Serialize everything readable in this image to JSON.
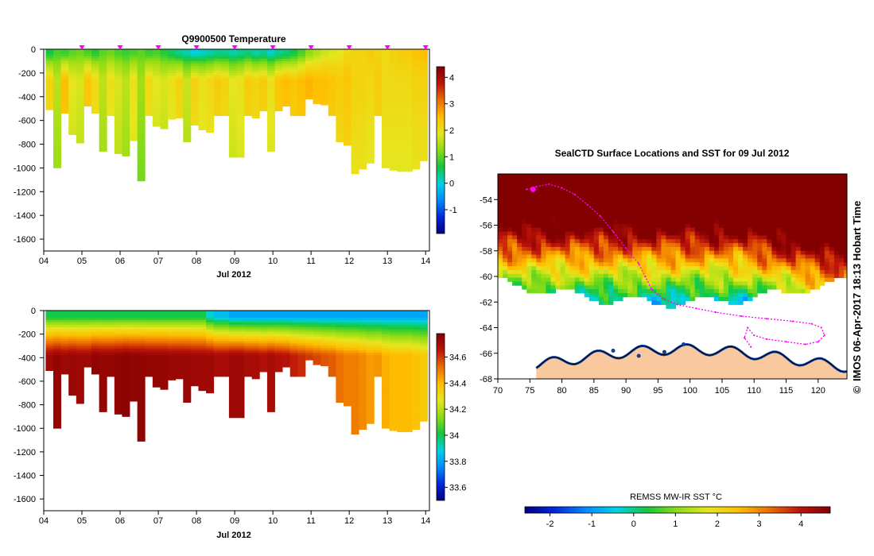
{
  "chart_data": [
    {
      "type": "heatmap",
      "title": "Q9900500  Temperature",
      "xlabel": "Jul 2012",
      "ylabel": "",
      "x_ticks": [
        "04",
        "05",
        "06",
        "07",
        "08",
        "09",
        "10",
        "11",
        "12",
        "13",
        "14"
      ],
      "xlim": [
        4.0,
        14.1
      ],
      "ylim": [
        -1700,
        0
      ],
      "y_ticks": [
        0,
        -200,
        -400,
        -600,
        -800,
        -1000,
        -1200,
        -1400,
        -1600
      ],
      "colorbar": {
        "min": -1.9,
        "max": 4.4,
        "ticks": [
          4,
          3,
          2,
          1,
          0,
          -1
        ]
      },
      "profile_times": [
        4.15,
        4.35,
        4.55,
        4.75,
        4.95,
        5.15,
        5.35,
        5.55,
        5.75,
        5.95,
        6.15,
        6.35,
        6.55,
        6.75,
        6.95,
        7.15,
        7.35,
        7.55,
        7.75,
        7.95,
        8.15,
        8.35,
        8.55,
        8.75,
        8.95,
        9.15,
        9.35,
        9.55,
        9.75,
        9.95,
        10.15,
        10.35,
        10.55,
        10.75,
        10.95,
        11.15,
        11.35,
        11.55,
        11.75,
        11.95,
        12.15,
        12.35,
        12.55,
        12.75,
        12.95,
        13.15,
        13.35,
        13.55,
        13.75,
        13.95
      ],
      "max_depths": [
        510,
        1000,
        540,
        720,
        790,
        480,
        540,
        860,
        560,
        880,
        900,
        770,
        1110,
        560,
        650,
        670,
        590,
        580,
        780,
        640,
        680,
        700,
        560,
        560,
        910,
        910,
        560,
        580,
        520,
        860,
        520,
        480,
        560,
        560,
        420,
        460,
        470,
        560,
        780,
        810,
        1050,
        1010,
        960,
        560,
        1000,
        1020,
        1030,
        1030,
        1010,
        940
      ],
      "surface_temps": [
        0.6,
        0.9,
        0.8,
        1.0,
        1.1,
        0.9,
        0.7,
        1.0,
        1.1,
        0.9,
        0.8,
        0.9,
        1.0,
        0.8,
        0.9,
        0.7,
        0.5,
        0.3,
        0.2,
        0.0,
        0.1,
        0.2,
        0.3,
        0.3,
        0.2,
        0.3,
        0.4,
        0.2,
        0.3,
        0.1,
        0.3,
        0.4,
        0.6,
        0.9,
        1.3,
        1.5,
        1.7,
        1.8,
        1.9,
        2.1,
        2.2,
        2.2,
        2.3,
        2.2,
        2.1,
        2.2,
        2.3,
        2.3,
        2.4,
        2.5
      ],
      "deep_temps": [
        2.2,
        1.6,
        2.5,
        1.9,
        1.8,
        2.4,
        2.1,
        1.6,
        2.0,
        1.8,
        1.6,
        2.0,
        1.4,
        2.1,
        1.9,
        1.8,
        2.0,
        2.2,
        1.7,
        2.2,
        2.0,
        2.1,
        2.3,
        2.2,
        1.9,
        2.0,
        2.3,
        2.2,
        2.3,
        2.0,
        2.4,
        2.5,
        2.4,
        2.5,
        2.6,
        2.5,
        2.5,
        2.4,
        2.3,
        2.4,
        2.2,
        2.2,
        2.1,
        2.3,
        2.1,
        2.1,
        2.1,
        2.1,
        2.2,
        2.2
      ],
      "surface_markers": [
        5.0,
        6.0,
        7.0,
        8.0,
        9.0,
        10.0,
        11.0,
        12.0,
        13.0,
        14.0
      ]
    },
    {
      "type": "heatmap",
      "title": "",
      "xlabel": "Jul 2012",
      "ylabel": "",
      "x_ticks": [
        "04",
        "05",
        "06",
        "07",
        "08",
        "09",
        "10",
        "11",
        "12",
        "13",
        "14"
      ],
      "xlim": [
        4.0,
        14.1
      ],
      "ylim": [
        -1700,
        0
      ],
      "y_ticks": [
        0,
        -200,
        -400,
        -600,
        -800,
        -1000,
        -1200,
        -1400,
        -1600
      ],
      "colorbar": {
        "min": 33.5,
        "max": 34.78,
        "ticks": [
          "34.6",
          "34.4",
          "34.2",
          "34",
          "33.8",
          "33.6"
        ]
      },
      "surface_salinity": [
        34.0,
        34.0,
        34.0,
        34.0,
        34.0,
        34.0,
        34.0,
        34.0,
        34.0,
        34.0,
        34.0,
        34.0,
        34.0,
        34.0,
        34.0,
        34.0,
        34.0,
        34.0,
        34.0,
        34.0,
        34.0,
        33.9,
        33.85,
        33.85,
        33.8,
        33.8,
        33.8,
        33.8,
        33.8,
        33.8,
        33.8,
        33.8,
        33.8,
        33.8,
        33.8,
        33.8,
        33.8,
        33.8,
        33.8,
        33.8,
        33.8,
        33.8,
        33.8,
        33.8,
        33.8,
        33.8,
        33.8,
        33.8,
        33.8,
        33.8
      ],
      "deep_salinity": [
        34.72,
        34.74,
        34.72,
        34.73,
        34.72,
        34.72,
        34.75,
        34.74,
        34.74,
        34.75,
        34.76,
        34.75,
        34.75,
        34.74,
        34.74,
        34.74,
        34.73,
        34.73,
        34.73,
        34.72,
        34.72,
        34.72,
        34.7,
        34.7,
        34.72,
        34.72,
        34.7,
        34.7,
        34.68,
        34.7,
        34.68,
        34.67,
        34.64,
        34.62,
        34.6,
        34.58,
        34.56,
        34.55,
        34.52,
        34.5,
        34.5,
        34.48,
        34.45,
        34.46,
        34.42,
        34.4,
        34.4,
        34.4,
        34.38,
        34.36
      ]
    },
    {
      "type": "heatmap",
      "title": "SealCTD Surface Locations and SST for 09 Jul 2012",
      "xlabel": "",
      "ylabel": "",
      "x_ticks": [
        "70",
        "75",
        "80",
        "85",
        "90",
        "95",
        "100",
        "105",
        "110",
        "115",
        "120"
      ],
      "y_ticks": [
        "-54",
        "-56",
        "-58",
        "-60",
        "-62",
        "-64",
        "-66",
        "-68"
      ],
      "xlim": [
        70,
        124.5
      ],
      "ylim": [
        -68,
        -52
      ],
      "colorbar": {
        "label": "REMSS MW-IR SST °C",
        "min": -2.6,
        "max": 4.7,
        "ticks": [
          "-2",
          "-1",
          "0",
          "1",
          "2",
          "3",
          "4"
        ]
      },
      "seal_track": [
        [
          74.5,
          -53.2
        ],
        [
          76,
          -53.0
        ],
        [
          78,
          -52.8
        ],
        [
          80,
          -53.1
        ],
        [
          82,
          -53.6
        ],
        [
          84,
          -54.4
        ],
        [
          86,
          -55.3
        ],
        [
          88,
          -56.5
        ],
        [
          90,
          -57.8
        ],
        [
          92,
          -59.0
        ],
        [
          93,
          -60.0
        ],
        [
          94,
          -61.0
        ],
        [
          96,
          -61.8
        ],
        [
          98,
          -62.2
        ],
        [
          101,
          -62.5
        ],
        [
          104,
          -62.8
        ],
        [
          108,
          -63.1
        ],
        [
          112,
          -63.3
        ],
        [
          116,
          -63.5
        ],
        [
          119,
          -63.7
        ],
        [
          120.5,
          -64.0
        ],
        [
          121,
          -64.6
        ],
        [
          120,
          -65.1
        ],
        [
          118,
          -65.3
        ],
        [
          115,
          -65.1
        ],
        [
          112,
          -64.9
        ],
        [
          110,
          -64.6
        ],
        [
          109,
          -64.0
        ],
        [
          108.5,
          -64.8
        ],
        [
          109.5,
          -65.5
        ]
      ],
      "current_position": [
        75.5,
        -53.2
      ]
    }
  ],
  "side_text": "IMOS 06-Apr-2017 18:13 Hobart Time",
  "copyright_symbol": "©",
  "colors": {
    "marker": "#ff00ff",
    "land": "#fac89e",
    "ice_edge": "#0a3fa0"
  }
}
